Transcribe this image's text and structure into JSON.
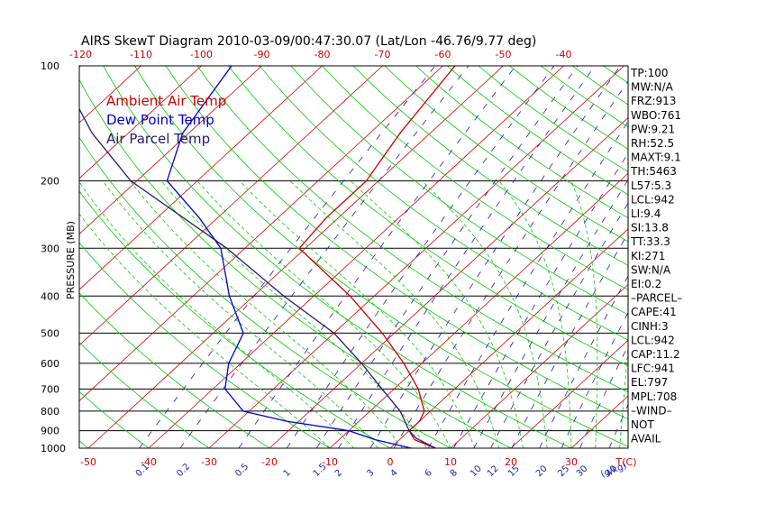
{
  "title": "AIRS SkewT Diagram 2010-03-09/00:47:30.07 (Lat/Lon -46.76/9.77 deg)",
  "y_axis_label": "PRESSURE (MB)",
  "legend": [
    {
      "label": "Ambient Air Temp",
      "color": "#cc0000"
    },
    {
      "label": "Dew Point Temp",
      "color": "#0000cc"
    },
    {
      "label": "Air Parcel Temp",
      "color": "#2b1a6e"
    }
  ],
  "colors": {
    "isotherm": "#cc0000",
    "dry_adiabat": "#00cc00",
    "moist_adiabat": "#00cc00",
    "mixing_ratio": "#3311aa",
    "temperature": "#cc0000",
    "dewpoint": "#0000cc",
    "parcel": "#2b1a6e",
    "isobar": "#000000"
  },
  "stats": [
    "TP:100",
    "MW:N/A",
    "FRZ:913",
    "WBO:761",
    "PW:9.21",
    "RH:52.5",
    "MAXT:9.1",
    "TH:5463",
    "L57:5.3",
    "LCL:942",
    "LI:9.4",
    "SI:13.8",
    "TT:33.3",
    "KI:271",
    "SW:N/A",
    "EI:0.2",
    "–PARCEL–",
    "CAPE:41",
    "CINH:3",
    "LCL:942",
    "CAP:11.2",
    "LFC:941",
    "EL:797",
    "MPL:708",
    "–WIND–",
    "NOT",
    "AVAIL"
  ],
  "chart_data": {
    "type": "line",
    "title": "AIRS SkewT Diagram 2010-03-09/00:47:30.07 (Lat/Lon -46.76/9.77 deg)",
    "ylabel": "PRESSURE (MB)",
    "xlabel": "T(C)",
    "y_scale": "log",
    "ylim": [
      1000,
      100
    ],
    "pressure_ticks": [
      100,
      200,
      300,
      400,
      500,
      600,
      700,
      800,
      900,
      1000
    ],
    "temp_ticks_top": [
      -120,
      -110,
      -100,
      -90,
      -80,
      -70,
      -60,
      -50,
      -40
    ],
    "temp_ticks_bottom": [
      -50,
      -40,
      -30,
      -20,
      -10,
      0,
      10,
      20,
      30
    ],
    "mixing_ratio_labels": [
      "0.1",
      "0.2",
      "0.5",
      "1",
      "1.5",
      "2",
      "3",
      "4",
      "6",
      "8",
      "10",
      "12",
      "15",
      "20",
      "25",
      "30",
      "40"
    ],
    "mixing_ratio_unit_label": "g/kg",
    "grid": true,
    "series": [
      {
        "name": "Ambient Air Temp",
        "pressure": [
          1000,
          950,
          900,
          850,
          800,
          700,
          600,
          500,
          400,
          300,
          250,
          200,
          150,
          100
        ],
        "temp": [
          7.5,
          2.5,
          0,
          0,
          -1,
          -6,
          -13,
          -22,
          -34,
          -51,
          -52,
          -52,
          -55,
          -58
        ]
      },
      {
        "name": "Dew Point Temp",
        "pressure": [
          1000,
          950,
          900,
          850,
          800,
          700,
          600,
          500,
          400,
          300,
          250,
          200,
          150,
          100
        ],
        "temp": [
          3.5,
          -4,
          -10,
          -22,
          -31,
          -38,
          -42,
          -45,
          -54,
          -64,
          -73,
          -85,
          -91,
          -95
        ]
      },
      {
        "name": "Air Parcel Temp",
        "pressure": [
          1000,
          942,
          900,
          800,
          700,
          600,
          500,
          400,
          300,
          200,
          150,
          100
        ],
        "temp": [
          7.5,
          2.5,
          0,
          -5,
          -12,
          -20,
          -30,
          -45,
          -63,
          -91,
          -106,
          -124
        ]
      }
    ]
  }
}
